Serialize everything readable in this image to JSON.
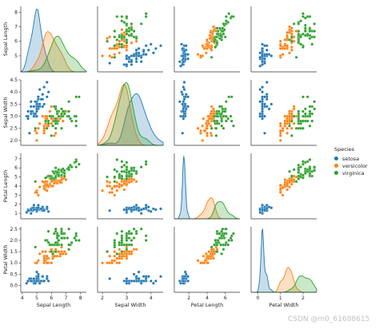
{
  "watermark": "CSDN @m0_61688615",
  "legend": {
    "title": "Species",
    "items": [
      {
        "label": "setosa",
        "color": "#1f77b4"
      },
      {
        "label": "versicolor",
        "color": "#ff7f0e"
      },
      {
        "label": "virginica",
        "color": "#2ca02c"
      }
    ]
  },
  "chart_data": {
    "type": "scatter",
    "subtype": "pairplot",
    "diagonal": "kde",
    "variables": [
      "Sepal Length",
      "Sepal Width",
      "Petal Length",
      "Petal Width"
    ],
    "ranges": {
      "Sepal Length": [
        3.9,
        8.4
      ],
      "Sepal Width": [
        1.8,
        4.5
      ],
      "Petal Length": [
        0.4,
        7.6
      ],
      "Petal Width": [
        -0.3,
        2.6
      ]
    },
    "ticks": {
      "Sepal Length": [
        4,
        5,
        6,
        7,
        8
      ],
      "Sepal Width": [
        2,
        3,
        4
      ],
      "Petal Length": [
        2,
        4,
        6
      ],
      "Petal Width": [
        0,
        1,
        2
      ]
    },
    "row_ticks": {
      "Sepal Length": [
        5,
        6,
        7,
        8
      ],
      "Sepal Width": [
        2.0,
        2.5,
        3.0,
        3.5,
        4.0,
        4.5
      ],
      "Petal Length": [
        1,
        2,
        3,
        4,
        5,
        6,
        7
      ],
      "Petal Width": [
        0.0,
        0.5,
        1.0,
        1.5,
        2.0,
        2.5
      ]
    },
    "grid": false,
    "legend_position": "right",
    "series": [
      {
        "name": "setosa",
        "color": "#1f77b4",
        "points": [
          [
            5.1,
            3.5,
            1.4,
            0.2
          ],
          [
            4.9,
            3.0,
            1.4,
            0.2
          ],
          [
            4.7,
            3.2,
            1.3,
            0.2
          ],
          [
            4.6,
            3.1,
            1.5,
            0.2
          ],
          [
            5.0,
            3.6,
            1.4,
            0.2
          ],
          [
            5.4,
            3.9,
            1.7,
            0.4
          ],
          [
            4.6,
            3.4,
            1.4,
            0.3
          ],
          [
            5.0,
            3.4,
            1.5,
            0.2
          ],
          [
            4.4,
            2.9,
            1.4,
            0.2
          ],
          [
            4.9,
            3.1,
            1.5,
            0.1
          ],
          [
            5.4,
            3.7,
            1.5,
            0.2
          ],
          [
            4.8,
            3.4,
            1.6,
            0.2
          ],
          [
            4.8,
            3.0,
            1.4,
            0.1
          ],
          [
            4.3,
            3.0,
            1.1,
            0.1
          ],
          [
            5.8,
            4.0,
            1.2,
            0.2
          ],
          [
            5.7,
            4.4,
            1.5,
            0.4
          ],
          [
            5.4,
            3.9,
            1.3,
            0.4
          ],
          [
            5.1,
            3.5,
            1.4,
            0.3
          ],
          [
            5.7,
            3.8,
            1.7,
            0.3
          ],
          [
            5.1,
            3.8,
            1.5,
            0.3
          ],
          [
            5.4,
            3.4,
            1.7,
            0.2
          ],
          [
            5.1,
            3.7,
            1.5,
            0.4
          ],
          [
            4.6,
            3.6,
            1.0,
            0.2
          ],
          [
            5.1,
            3.3,
            1.7,
            0.5
          ],
          [
            4.8,
            3.4,
            1.9,
            0.2
          ],
          [
            5.0,
            3.0,
            1.6,
            0.2
          ],
          [
            5.0,
            3.4,
            1.6,
            0.4
          ],
          [
            5.2,
            3.5,
            1.5,
            0.2
          ],
          [
            5.2,
            3.4,
            1.4,
            0.2
          ],
          [
            4.7,
            3.2,
            1.6,
            0.2
          ],
          [
            4.8,
            3.1,
            1.6,
            0.2
          ],
          [
            5.4,
            3.4,
            1.5,
            0.4
          ],
          [
            5.2,
            4.1,
            1.5,
            0.1
          ],
          [
            5.5,
            4.2,
            1.4,
            0.2
          ],
          [
            4.9,
            3.1,
            1.5,
            0.2
          ],
          [
            5.0,
            3.2,
            1.2,
            0.2
          ],
          [
            5.5,
            3.5,
            1.3,
            0.2
          ],
          [
            4.9,
            3.6,
            1.4,
            0.1
          ],
          [
            4.4,
            3.0,
            1.3,
            0.2
          ],
          [
            5.1,
            3.4,
            1.5,
            0.2
          ],
          [
            5.0,
            3.5,
            1.3,
            0.3
          ],
          [
            4.5,
            2.3,
            1.3,
            0.3
          ],
          [
            4.4,
            3.2,
            1.3,
            0.2
          ],
          [
            5.0,
            3.5,
            1.6,
            0.6
          ],
          [
            5.1,
            3.8,
            1.9,
            0.4
          ],
          [
            4.8,
            3.0,
            1.4,
            0.3
          ],
          [
            5.1,
            3.8,
            1.6,
            0.2
          ],
          [
            4.6,
            3.2,
            1.4,
            0.2
          ],
          [
            5.3,
            3.7,
            1.5,
            0.2
          ],
          [
            5.0,
            3.3,
            1.4,
            0.2
          ]
        ]
      },
      {
        "name": "versicolor",
        "color": "#ff7f0e",
        "points": [
          [
            7.0,
            3.2,
            4.7,
            1.4
          ],
          [
            6.4,
            3.2,
            4.5,
            1.5
          ],
          [
            6.9,
            3.1,
            4.9,
            1.5
          ],
          [
            5.5,
            2.3,
            4.0,
            1.3
          ],
          [
            6.5,
            2.8,
            4.6,
            1.5
          ],
          [
            5.7,
            2.8,
            4.5,
            1.3
          ],
          [
            6.3,
            3.3,
            4.7,
            1.6
          ],
          [
            4.9,
            2.4,
            3.3,
            1.0
          ],
          [
            6.6,
            2.9,
            4.6,
            1.3
          ],
          [
            5.2,
            2.7,
            3.9,
            1.4
          ],
          [
            5.0,
            2.0,
            3.5,
            1.0
          ],
          [
            5.9,
            3.0,
            4.2,
            1.5
          ],
          [
            6.0,
            2.2,
            4.0,
            1.0
          ],
          [
            6.1,
            2.9,
            4.7,
            1.4
          ],
          [
            5.6,
            2.9,
            3.6,
            1.3
          ],
          [
            6.7,
            3.1,
            4.4,
            1.4
          ],
          [
            5.6,
            3.0,
            4.5,
            1.5
          ],
          [
            5.8,
            2.7,
            4.1,
            1.0
          ],
          [
            6.2,
            2.2,
            4.5,
            1.5
          ],
          [
            5.6,
            2.5,
            3.9,
            1.1
          ],
          [
            5.9,
            3.2,
            4.8,
            1.8
          ],
          [
            6.1,
            2.8,
            4.0,
            1.3
          ],
          [
            6.3,
            2.5,
            4.9,
            1.5
          ],
          [
            6.1,
            2.8,
            4.7,
            1.2
          ],
          [
            6.4,
            2.9,
            4.3,
            1.3
          ],
          [
            6.6,
            3.0,
            4.4,
            1.4
          ],
          [
            6.8,
            2.8,
            4.8,
            1.4
          ],
          [
            6.7,
            3.0,
            5.0,
            1.7
          ],
          [
            6.0,
            2.9,
            4.5,
            1.5
          ],
          [
            5.7,
            2.6,
            3.5,
            1.0
          ],
          [
            5.5,
            2.4,
            3.8,
            1.1
          ],
          [
            5.5,
            2.4,
            3.7,
            1.0
          ],
          [
            5.8,
            2.7,
            3.9,
            1.2
          ],
          [
            6.0,
            2.7,
            5.1,
            1.6
          ],
          [
            5.4,
            3.0,
            4.5,
            1.5
          ],
          [
            6.0,
            3.4,
            4.5,
            1.6
          ],
          [
            6.7,
            3.1,
            4.7,
            1.5
          ],
          [
            6.3,
            2.3,
            4.4,
            1.3
          ],
          [
            5.6,
            3.0,
            4.1,
            1.3
          ],
          [
            5.5,
            2.5,
            4.0,
            1.3
          ],
          [
            5.5,
            2.6,
            4.4,
            1.2
          ],
          [
            6.1,
            3.0,
            4.6,
            1.4
          ],
          [
            5.8,
            2.6,
            4.0,
            1.2
          ],
          [
            5.0,
            2.3,
            3.3,
            1.0
          ],
          [
            5.6,
            2.7,
            4.2,
            1.3
          ],
          [
            5.7,
            3.0,
            4.2,
            1.2
          ],
          [
            5.7,
            2.9,
            4.2,
            1.3
          ],
          [
            6.2,
            2.9,
            4.3,
            1.3
          ],
          [
            5.1,
            2.5,
            3.0,
            1.1
          ],
          [
            5.7,
            2.8,
            4.1,
            1.3
          ]
        ]
      },
      {
        "name": "virginica",
        "color": "#2ca02c",
        "points": [
          [
            6.3,
            3.3,
            6.0,
            2.5
          ],
          [
            5.8,
            2.7,
            5.1,
            1.9
          ],
          [
            7.1,
            3.0,
            5.9,
            2.1
          ],
          [
            6.3,
            2.9,
            5.6,
            1.8
          ],
          [
            6.5,
            3.0,
            5.8,
            2.2
          ],
          [
            7.6,
            3.0,
            6.6,
            2.1
          ],
          [
            4.9,
            2.5,
            4.5,
            1.7
          ],
          [
            7.3,
            2.9,
            6.3,
            1.8
          ],
          [
            6.7,
            2.5,
            5.8,
            1.8
          ],
          [
            7.2,
            3.6,
            6.1,
            2.5
          ],
          [
            6.5,
            3.2,
            5.1,
            2.0
          ],
          [
            6.4,
            2.7,
            5.3,
            1.9
          ],
          [
            6.8,
            3.0,
            5.5,
            2.1
          ],
          [
            5.7,
            2.5,
            5.0,
            2.0
          ],
          [
            5.8,
            2.8,
            5.1,
            2.4
          ],
          [
            6.4,
            3.2,
            5.3,
            2.3
          ],
          [
            6.5,
            3.0,
            5.5,
            1.8
          ],
          [
            7.7,
            3.8,
            6.7,
            2.2
          ],
          [
            7.7,
            2.6,
            6.9,
            2.3
          ],
          [
            6.0,
            2.2,
            5.0,
            1.5
          ],
          [
            6.9,
            3.2,
            5.7,
            2.3
          ],
          [
            5.6,
            2.8,
            4.9,
            2.0
          ],
          [
            7.7,
            2.8,
            6.7,
            2.0
          ],
          [
            6.3,
            2.7,
            4.9,
            1.8
          ],
          [
            6.7,
            3.3,
            5.7,
            2.1
          ],
          [
            7.2,
            3.2,
            6.0,
            1.8
          ],
          [
            6.2,
            2.8,
            4.8,
            1.8
          ],
          [
            6.1,
            3.0,
            4.9,
            1.8
          ],
          [
            6.4,
            2.8,
            5.6,
            2.1
          ],
          [
            7.2,
            3.0,
            5.8,
            1.6
          ],
          [
            7.4,
            2.8,
            6.1,
            1.9
          ],
          [
            7.9,
            3.8,
            6.4,
            2.0
          ],
          [
            6.4,
            2.8,
            5.6,
            2.2
          ],
          [
            6.3,
            2.8,
            5.1,
            1.5
          ],
          [
            6.1,
            2.6,
            5.6,
            1.4
          ],
          [
            7.7,
            3.0,
            6.1,
            2.3
          ],
          [
            6.3,
            3.4,
            5.6,
            2.4
          ],
          [
            6.4,
            3.1,
            5.5,
            1.8
          ],
          [
            6.0,
            3.0,
            4.8,
            1.8
          ],
          [
            6.9,
            3.1,
            5.4,
            2.1
          ],
          [
            6.7,
            3.1,
            5.6,
            2.4
          ],
          [
            6.9,
            3.1,
            5.1,
            2.3
          ],
          [
            5.8,
            2.7,
            5.1,
            1.9
          ],
          [
            6.8,
            3.2,
            5.9,
            2.3
          ],
          [
            6.7,
            3.3,
            5.7,
            2.5
          ],
          [
            6.7,
            3.0,
            5.2,
            2.3
          ],
          [
            6.3,
            2.5,
            5.0,
            1.9
          ],
          [
            6.5,
            3.0,
            5.2,
            2.0
          ],
          [
            6.2,
            3.4,
            5.4,
            2.3
          ],
          [
            5.9,
            3.0,
            5.1,
            1.8
          ]
        ]
      }
    ]
  }
}
